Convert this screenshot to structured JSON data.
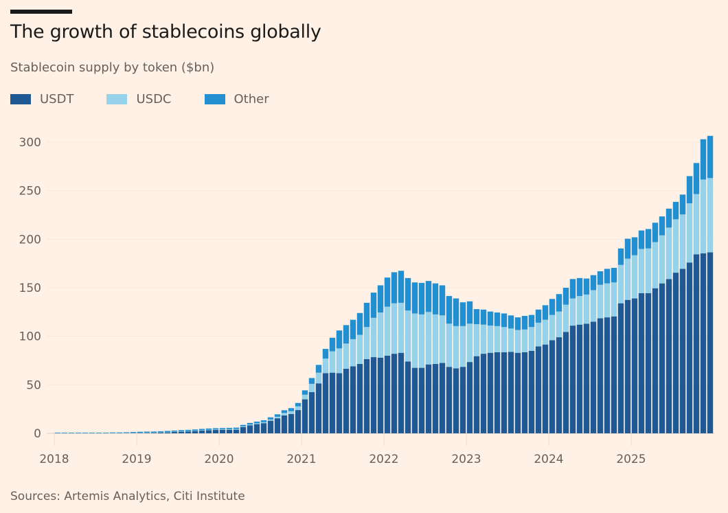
{
  "header": {
    "title": "The growth of stablecoins globally",
    "subtitle": "Stablecoin supply by token ($bn)"
  },
  "legend": [
    {
      "label": "USDT",
      "color": "#1f5993"
    },
    {
      "label": "USDC",
      "color": "#96d3ea"
    },
    {
      "label": "Other",
      "color": "#2290d0"
    }
  ],
  "footer": {
    "source": "Sources: Artemis Analytics, Citi Institute"
  },
  "chart_data": {
    "type": "bar",
    "stacked": true,
    "title": "The growth of stablecoins globally",
    "subtitle": "Stablecoin supply by token ($bn)",
    "xlabel": "",
    "ylabel": "$bn",
    "ylim": [
      0,
      300
    ],
    "yticks": [
      0,
      50,
      100,
      150,
      200,
      250,
      300
    ],
    "xticks": [
      "2018",
      "2019",
      "2020",
      "2021",
      "2022",
      "2023",
      "2024",
      "2025"
    ],
    "grid": true,
    "legend_position": "top-left",
    "frequency": "monthly",
    "start": "2018-01",
    "end": "2025-12",
    "series": [
      {
        "name": "USDT",
        "color": "#1f5993",
        "values": [
          0.2,
          0.2,
          0.2,
          0.2,
          0.2,
          0.2,
          0.2,
          0.2,
          0.2,
          0.2,
          0.2,
          0.3,
          0.4,
          0.5,
          0.6,
          0.8,
          1.0,
          1.4,
          1.7,
          2.0,
          2.4,
          2.8,
          3.2,
          3.5,
          3.6,
          3.7,
          3.8,
          6.5,
          8.3,
          9.5,
          10.5,
          13.0,
          15.5,
          18.5,
          20.0,
          24.0,
          35.0,
          42.5,
          51.5,
          62.0,
          62.5,
          62.0,
          66.5,
          69.0,
          71.5,
          76.5,
          78.5,
          78.0,
          80.0,
          82.0,
          83.0,
          74.0,
          67.5,
          67.5,
          71.0,
          71.5,
          72.5,
          68.5,
          67.0,
          68.5,
          73.5,
          79.5,
          82.0,
          83.0,
          83.5,
          83.5,
          84.0,
          83.0,
          83.5,
          85.0,
          89.5,
          91.5,
          96.0,
          99.0,
          104.5,
          111.0,
          112.0,
          113.0,
          115.0,
          118.5,
          119.5,
          120.5,
          134.0,
          137.5,
          139.0,
          144.5,
          144.5,
          149.5,
          154.5,
          159.0,
          165.5,
          169.5,
          176.0,
          184.5,
          185.5,
          186.5
        ]
      },
      {
        "name": "USDC",
        "color": "#96d3ea",
        "values": [
          0,
          0,
          0,
          0,
          0,
          0,
          0,
          0,
          0.1,
          0.1,
          0.2,
          0.3,
          0.3,
          0.3,
          0.3,
          0.3,
          0.4,
          0.4,
          0.4,
          0.4,
          0.4,
          0.5,
          0.5,
          0.5,
          0.5,
          0.6,
          0.7,
          0.7,
          0.8,
          0.9,
          1.0,
          1.3,
          1.6,
          2.5,
          2.8,
          3.8,
          4.8,
          8.5,
          11.0,
          15.0,
          22.0,
          25.5,
          26.0,
          28.0,
          30.0,
          33.0,
          40.5,
          46.5,
          50.5,
          52.0,
          51.5,
          52.5,
          56.0,
          55.0,
          54.0,
          51.0,
          49.0,
          44.5,
          43.5,
          42.0,
          39.5,
          33.0,
          30.0,
          28.0,
          27.0,
          26.0,
          24.0,
          23.5,
          23.5,
          24.5,
          24.5,
          25.5,
          26.0,
          26.5,
          28.0,
          28.0,
          29.5,
          30.0,
          32.5,
          34.5,
          35.0,
          35.0,
          39.5,
          42.5,
          44.5,
          45.5,
          46.0,
          47.5,
          49.5,
          53.0,
          55.0,
          56.0,
          61.0,
          62.0,
          76.0,
          76.5
        ]
      },
      {
        "name": "Other",
        "color": "#2290d0",
        "values": [
          0.5,
          0.5,
          0.5,
          0.5,
          0.5,
          0.5,
          0.5,
          0.5,
          0.6,
          0.6,
          0.7,
          0.8,
          0.9,
          1.0,
          1.0,
          1.1,
          1.1,
          1.1,
          1.2,
          1.2,
          1.2,
          1.3,
          1.3,
          1.3,
          1.3,
          1.3,
          1.4,
          1.5,
          1.6,
          1.7,
          2.0,
          2.2,
          2.5,
          2.8,
          3.2,
          3.5,
          4.5,
          6.0,
          8.0,
          10.0,
          14.0,
          18.5,
          19.0,
          20.0,
          22.5,
          25.0,
          26.0,
          28.0,
          30.0,
          32.0,
          33.0,
          33.5,
          32.0,
          32.5,
          32.0,
          32.0,
          31.0,
          28.5,
          28.5,
          24.5,
          23.0,
          15.5,
          15.5,
          14.5,
          14.0,
          14.0,
          13.5,
          13.0,
          14.0,
          12.5,
          13.5,
          15.0,
          16.5,
          18.0,
          17.5,
          20.0,
          18.5,
          16.5,
          15.5,
          14.0,
          15.0,
          15.0,
          17.0,
          20.5,
          18.5,
          19.0,
          20.0,
          20.0,
          19.5,
          19.5,
          18.0,
          20.5,
          28.0,
          32.0,
          41.5,
          43.5
        ]
      }
    ]
  }
}
